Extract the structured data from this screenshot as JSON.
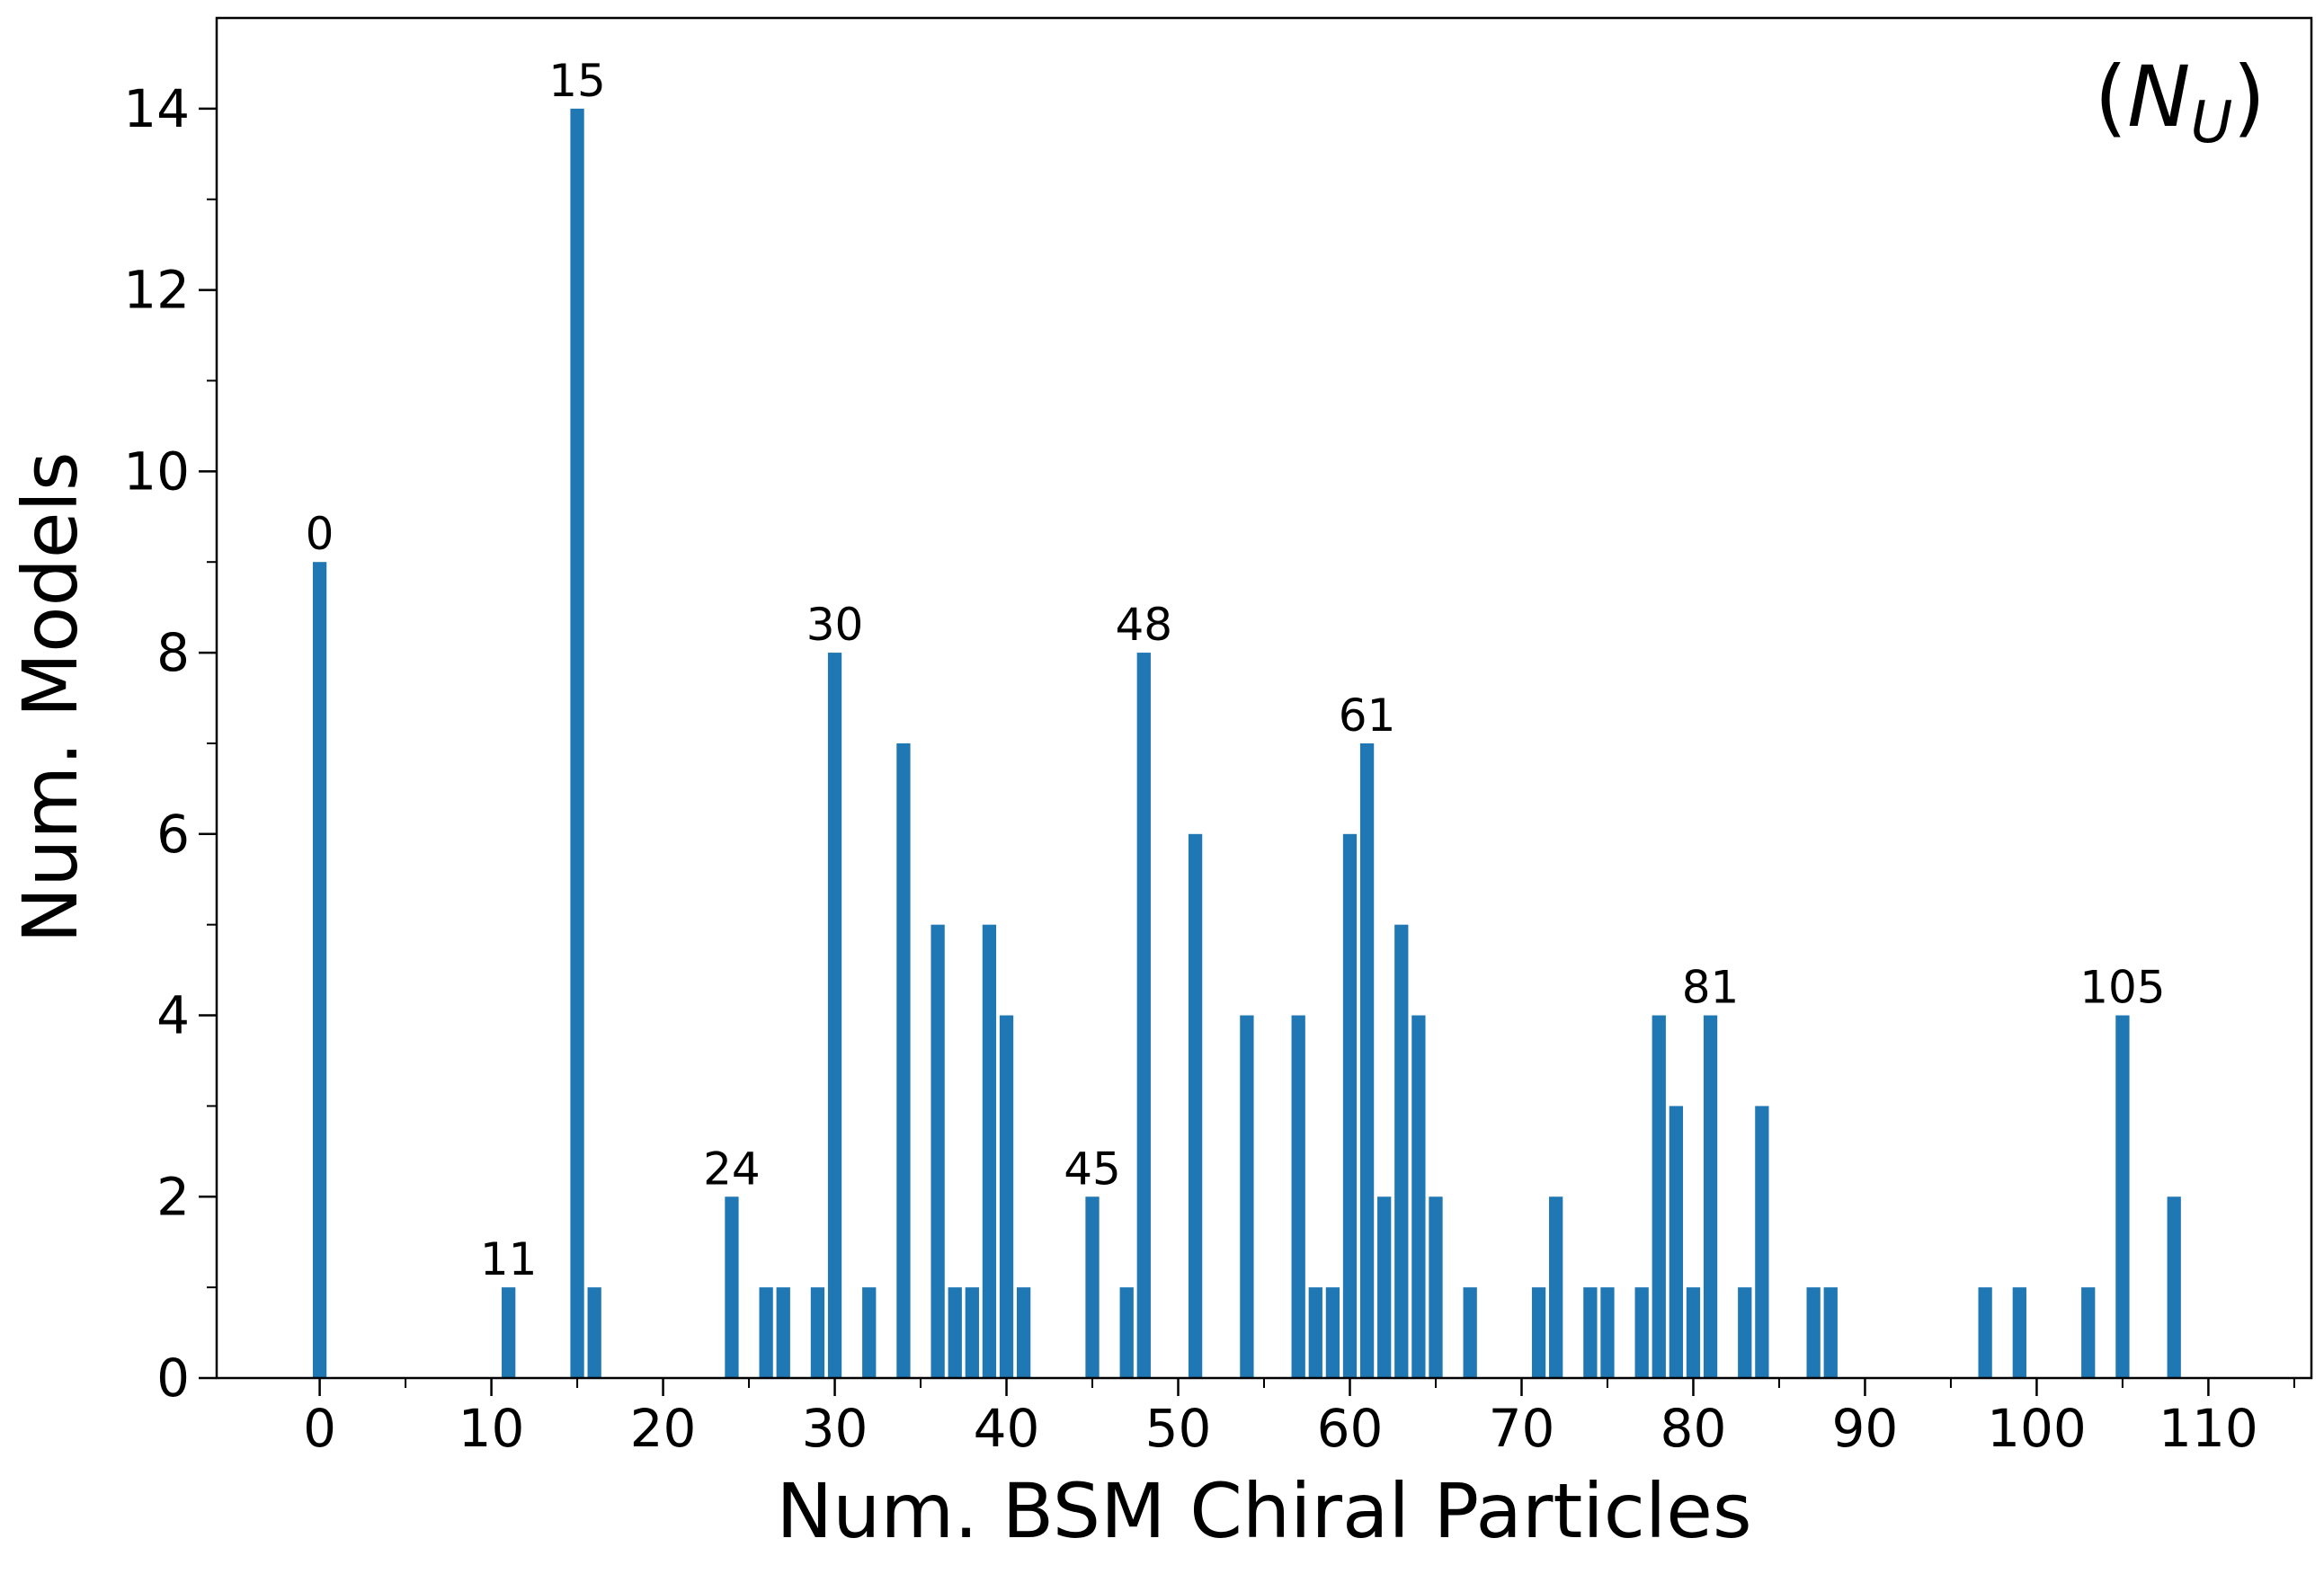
{
  "chart_data": {
    "type": "bar",
    "xlabel": "Num. BSM Chiral Particles",
    "ylabel": "Num. Models",
    "corner_label": {
      "open": "(",
      "symbol": "N",
      "subscript": "U",
      "close": ")"
    },
    "xlim": [
      -6,
      116
    ],
    "ylim": [
      0,
      15
    ],
    "x_ticks": [
      0,
      10,
      20,
      30,
      40,
      50,
      60,
      70,
      80,
      90,
      100,
      110
    ],
    "x_minor_ticks": [
      5,
      15,
      25,
      35,
      45,
      55,
      65,
      75,
      85,
      95,
      105,
      115
    ],
    "y_ticks": [
      0,
      2,
      4,
      6,
      8,
      10,
      12,
      14
    ],
    "y_minor_ticks": [
      1,
      3,
      5,
      7,
      9,
      11,
      13
    ],
    "grid": false,
    "bar_color": "#1f77b4",
    "x": [
      0,
      11,
      15,
      16,
      24,
      26,
      27,
      29,
      30,
      32,
      34,
      36,
      37,
      38,
      39,
      40,
      41,
      45,
      47,
      48,
      51,
      54,
      57,
      58,
      59,
      60,
      61,
      62,
      63,
      64,
      65,
      67,
      71,
      72,
      74,
      75,
      77,
      78,
      79,
      80,
      81,
      83,
      84,
      87,
      88,
      97,
      99,
      103,
      105,
      108
    ],
    "values": [
      9,
      1,
      14,
      1,
      2,
      1,
      1,
      1,
      8,
      1,
      7,
      5,
      1,
      1,
      5,
      4,
      1,
      2,
      1,
      8,
      6,
      4,
      4,
      1,
      1,
      6,
      7,
      2,
      5,
      4,
      2,
      1,
      1,
      2,
      1,
      1,
      1,
      4,
      3,
      1,
      4,
      1,
      3,
      1,
      1,
      1,
      1,
      1,
      4,
      2
    ],
    "annotations": [
      {
        "x": 0,
        "y": 9,
        "text": "0"
      },
      {
        "x": 11,
        "y": 1,
        "text": "11"
      },
      {
        "x": 15,
        "y": 14,
        "text": "15"
      },
      {
        "x": 24,
        "y": 2,
        "text": "24"
      },
      {
        "x": 30,
        "y": 8,
        "text": "30"
      },
      {
        "x": 45,
        "y": 2,
        "text": "45"
      },
      {
        "x": 48,
        "y": 8,
        "text": "48"
      },
      {
        "x": 61,
        "y": 7,
        "text": "61"
      },
      {
        "x": 81,
        "y": 4,
        "text": "81"
      },
      {
        "x": 105,
        "y": 4,
        "text": "105"
      }
    ]
  }
}
